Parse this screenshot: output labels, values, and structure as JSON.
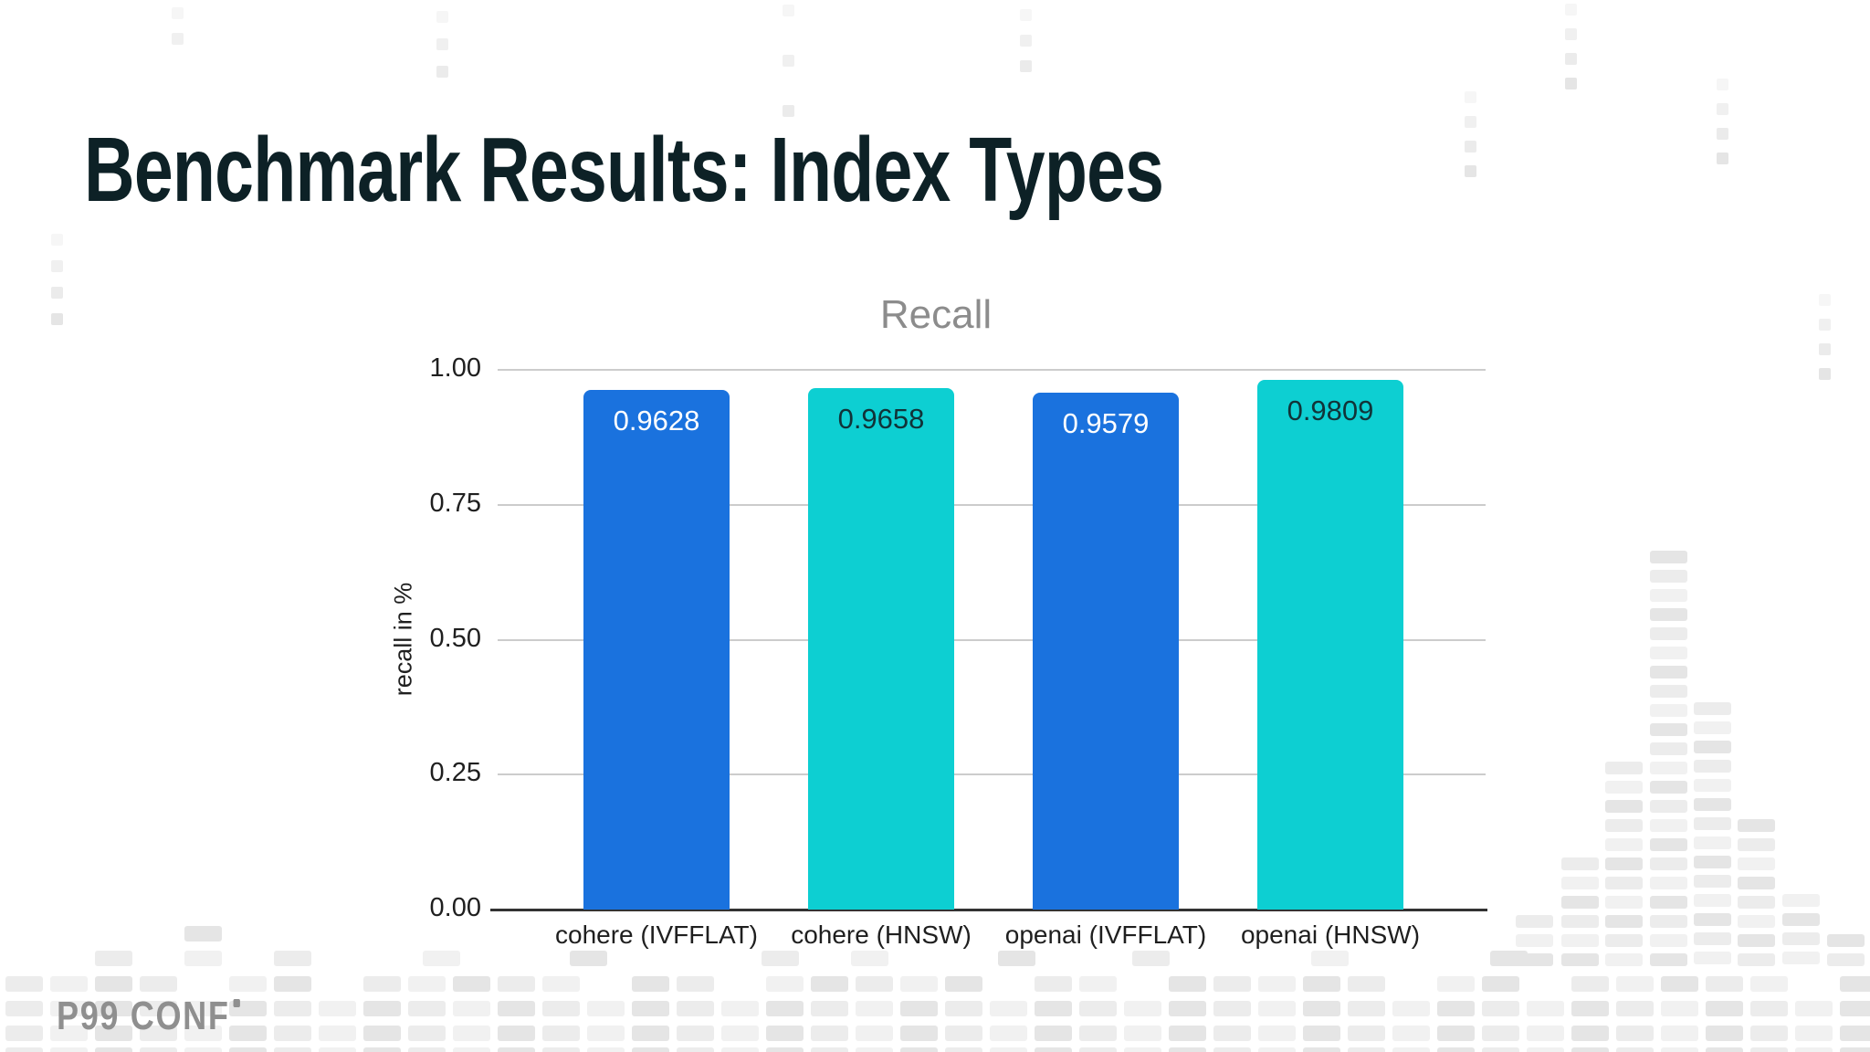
{
  "slide": {
    "title": "Benchmark Results: Index Types"
  },
  "chart_data": {
    "type": "bar",
    "title": "Recall",
    "xlabel": "",
    "ylabel": "recall in %",
    "categories": [
      "cohere (IVFFLAT)",
      "cohere (HNSW)",
      "openai (IVFFLAT)",
      "openai (HNSW)"
    ],
    "values": [
      0.9628,
      0.9658,
      0.9579,
      0.9809
    ],
    "value_labels": [
      "0.9628",
      "0.9658",
      "0.9579",
      "0.9809"
    ],
    "bar_colors": [
      "#1a72de",
      "#0dcfd2",
      "#1a72de",
      "#0dcfd2"
    ],
    "value_label_colors": [
      "#ffffff",
      "#113338",
      "#ffffff",
      "#113338"
    ],
    "yticks": [
      "1.00",
      "0.75",
      "0.50",
      "0.25",
      "0.00"
    ],
    "ylim": [
      0,
      1
    ],
    "grid": true,
    "legend": "none"
  },
  "footer": {
    "logo": "P99 CONF"
  },
  "colors": {
    "background": "#ffffff",
    "slide_title": "#0d2126",
    "chart_title": "#8c8c8c",
    "axis_text": "#1f1f1f",
    "grid_line": "#cccccc",
    "axis_line": "#333333",
    "logo": "#8f8f8f",
    "pattern_light": "#f1f1f1",
    "pattern_mid": "#ececec",
    "pattern_dark": "#e5e5e5"
  }
}
